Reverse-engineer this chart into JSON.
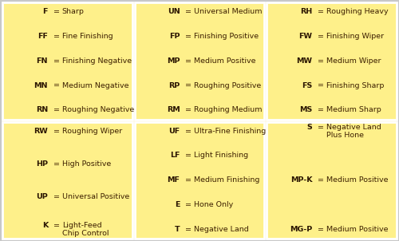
{
  "cell_bg": "#fef08a",
  "border_color": "#ffffff",
  "text_color": "#3d2000",
  "bold_color": "#2a1500",
  "fig_bg": "#c8c8c8",
  "outer_bg": "#fde68a",
  "panels": [
    {
      "col": 0,
      "row": 0,
      "entries": [
        [
          "F",
          "Sharp"
        ],
        [
          "FF",
          "Fine Finishing"
        ],
        [
          "FN",
          "Finishing Negative"
        ],
        [
          "MN",
          "Medium Negative"
        ],
        [
          "RN",
          "Roughing Negative"
        ]
      ]
    },
    {
      "col": 1,
      "row": 0,
      "entries": [
        [
          "UN",
          "Universal Medium"
        ],
        [
          "FP",
          "Finishing Positive"
        ],
        [
          "MP",
          "Medium Positive"
        ],
        [
          "RP",
          "Roughing Positive"
        ],
        [
          "RM",
          "Roughing Medium"
        ]
      ]
    },
    {
      "col": 2,
      "row": 0,
      "entries": [
        [
          "RH",
          "Roughing Heavy"
        ],
        [
          "FW",
          "Finishing Wiper"
        ],
        [
          "MW",
          "Medium Wiper"
        ],
        [
          "FS",
          "Finishing Sharp"
        ],
        [
          "MS",
          "Medium Sharp"
        ]
      ]
    },
    {
      "col": 0,
      "row": 1,
      "entries": [
        [
          "RW",
          "Roughing Wiper"
        ],
        [
          "HP",
          "High Positive"
        ],
        [
          "UP",
          "Universal Positive"
        ],
        [
          "K",
          "Light-Feed\nChip Control"
        ]
      ]
    },
    {
      "col": 1,
      "row": 1,
      "entries": [
        [
          "UF",
          "Ultra-Fine Finishing"
        ],
        [
          "LF",
          "Light Finishing"
        ],
        [
          "MF",
          "Medium Finishing"
        ],
        [
          "E",
          "Hone Only"
        ],
        [
          "T",
          "Negative Land"
        ]
      ]
    },
    {
      "col": 2,
      "row": 1,
      "entries": [
        [
          "S",
          "Negative Land\nPlus Hone"
        ],
        [
          "MP-K",
          "Medium Positive"
        ],
        [
          "MG-P",
          "Medium Positive"
        ]
      ]
    }
  ]
}
